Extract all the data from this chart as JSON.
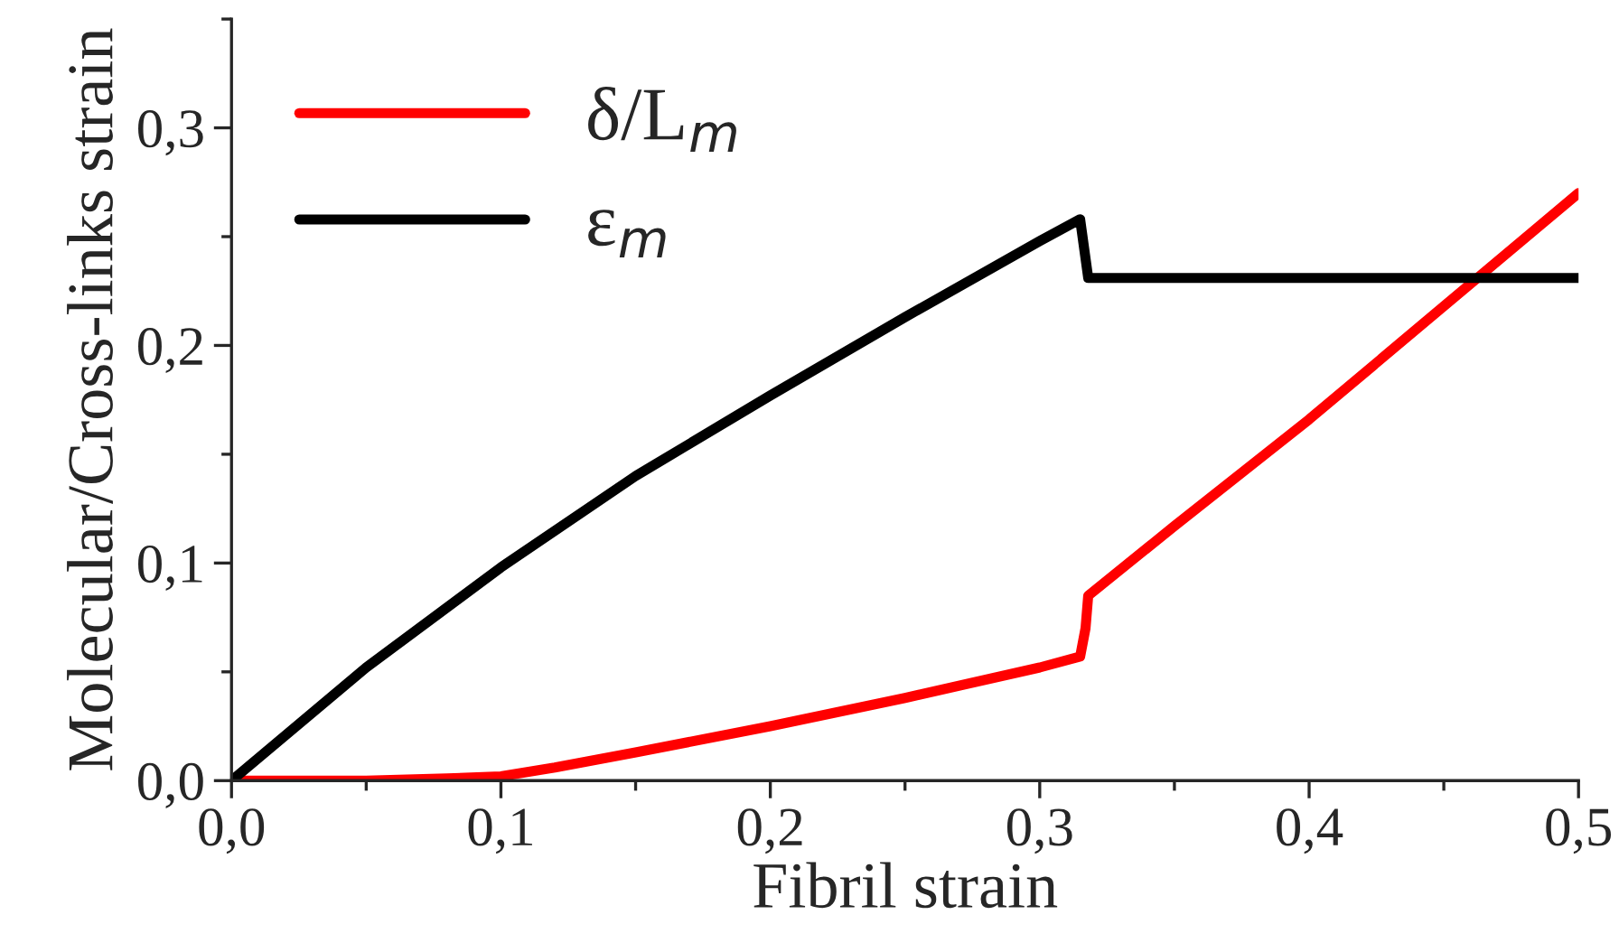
{
  "chart_data": {
    "type": "line",
    "xlabel": "Fibril strain",
    "ylabel": "Molecular/Cross-links strain",
    "xlim": [
      0,
      0.5
    ],
    "ylim": [
      0,
      0.35
    ],
    "xticks": [
      {
        "value": 0,
        "label": "0,0"
      },
      {
        "value": 0.1,
        "label": "0,1"
      },
      {
        "value": 0.2,
        "label": "0,2"
      },
      {
        "value": 0.3,
        "label": "0,3"
      },
      {
        "value": 0.4,
        "label": "0,4"
      },
      {
        "value": 0.5,
        "label": "0,5"
      }
    ],
    "yticks": [
      {
        "value": 0,
        "label": "0,0"
      },
      {
        "value": 0.1,
        "label": "0,1"
      },
      {
        "value": 0.2,
        "label": "0,2"
      },
      {
        "value": 0.3,
        "label": "0,3"
      }
    ],
    "grid": false,
    "legend": "top left",
    "line_style": "solid",
    "marker": "none",
    "series": [
      {
        "name": "δ/L$_{m}$",
        "color": "#ff0000",
        "x": [
          0,
          0.05,
          0.08,
          0.1,
          0.12,
          0.15,
          0.2,
          0.25,
          0.3,
          0.315,
          0.317,
          0.318,
          0.35,
          0.4,
          0.45,
          0.5
        ],
        "values": [
          0,
          0,
          0.001,
          0.002,
          0.006,
          0.013,
          0.025,
          0.038,
          0.052,
          0.057,
          0.07,
          0.085,
          0.117,
          0.166,
          0.218,
          0.27
        ]
      },
      {
        "name": "ε$_{m}$",
        "color": "#000000",
        "x": [
          0,
          0.05,
          0.1,
          0.15,
          0.2,
          0.25,
          0.3,
          0.315,
          0.318,
          0.35,
          0.4,
          0.45,
          0.5
        ],
        "values": [
          0,
          0.052,
          0.098,
          0.14,
          0.177,
          0.213,
          0.248,
          0.258,
          0.231,
          0.231,
          0.231,
          0.231,
          0.231
        ]
      }
    ]
  }
}
